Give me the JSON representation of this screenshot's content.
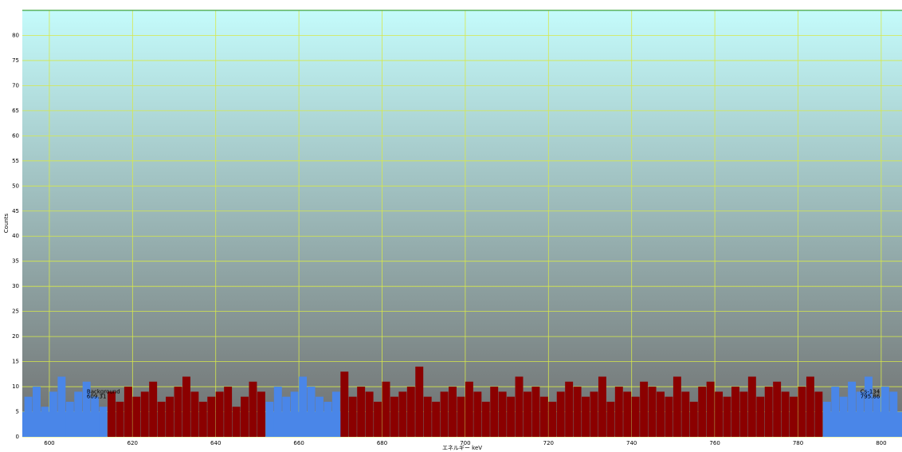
{
  "chart_data": {
    "type": "histogram",
    "x_label": "エネルギー keV",
    "y_label": "Counts",
    "xlim": [
      593.5,
      805
    ],
    "ylim": [
      0,
      85
    ],
    "xticks": [
      600,
      620,
      640,
      660,
      680,
      700,
      720,
      740,
      760,
      780,
      800
    ],
    "yticks": [
      0,
      5,
      10,
      15,
      20,
      25,
      30,
      35,
      40,
      45,
      50,
      55,
      60,
      65,
      70,
      75,
      80
    ],
    "grid": true,
    "color": "#8b0000",
    "roi_color": "#4a86e8",
    "bins": [
      594,
      596,
      598,
      600,
      602,
      604,
      606,
      608,
      610,
      612,
      614,
      616,
      618,
      620,
      622,
      624,
      626,
      628,
      630,
      632,
      634,
      636,
      638,
      640,
      642,
      644,
      646,
      648,
      650,
      652,
      654,
      656,
      658,
      660,
      662,
      664,
      666,
      668,
      670,
      672,
      674,
      676,
      678,
      680,
      682,
      684,
      686,
      688,
      690,
      692,
      694,
      696,
      698,
      700,
      702,
      704,
      706,
      708,
      710,
      712,
      714,
      716,
      718,
      720,
      722,
      724,
      726,
      728,
      730,
      732,
      734,
      736,
      738,
      740,
      742,
      744,
      746,
      748,
      750,
      752,
      754,
      756,
      758,
      760,
      762,
      764,
      766,
      768,
      770,
      772,
      774,
      776,
      778,
      780,
      782,
      784,
      786,
      788,
      790,
      792,
      794,
      796,
      798,
      800,
      802,
      804
    ],
    "values": [
      8,
      10,
      6,
      9,
      12,
      7,
      9,
      11,
      8,
      6,
      9,
      7,
      10,
      8,
      9,
      11,
      7,
      8,
      10,
      12,
      9,
      7,
      8,
      9,
      10,
      6,
      8,
      11,
      9,
      7,
      10,
      8,
      9,
      12,
      10,
      8,
      7,
      9,
      13,
      8,
      10,
      9,
      7,
      11,
      8,
      9,
      10,
      14,
      8,
      7,
      9,
      10,
      8,
      11,
      9,
      7,
      10,
      9,
      8,
      12,
      9,
      10,
      8,
      7,
      9,
      11,
      10,
      8,
      9,
      12,
      7,
      10,
      9,
      8,
      11,
      10,
      9,
      8,
      12,
      9,
      7,
      10,
      11,
      9,
      8,
      10,
      9,
      12,
      8,
      10,
      11,
      9,
      8,
      10,
      12,
      9,
      7,
      10,
      8,
      11,
      9,
      12,
      8,
      10,
      9
    ],
    "regions": [
      {
        "xlim": [
          593.5,
          613.5
        ],
        "height": 5
      },
      {
        "xlim": [
          652.5,
          671
        ],
        "height": 5
      },
      {
        "xlim": [
          787,
          805
        ],
        "height": 5
      }
    ],
    "annotations": [
      {
        "text": "Background",
        "x": 609,
        "y": 9
      },
      {
        "text": "609.31",
        "x": 609,
        "y": 8
      },
      {
        "text": "Cs-134",
        "x": 795,
        "y": 9
      },
      {
        "text": "795.86",
        "x": 795,
        "y": 8
      }
    ]
  }
}
